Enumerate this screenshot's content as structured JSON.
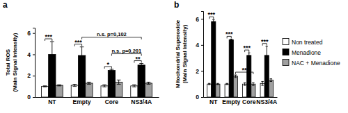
{
  "chart_data": [
    {
      "type": "bar",
      "title": "a",
      "y_label": "Total ROS\n(Main Signal Intensity)",
      "categories": [
        "NT",
        "Empty",
        "Core",
        "NS3/4A"
      ],
      "series": [
        {
          "name": "Non treated",
          "color": "#ffffff",
          "values": [
            1.0,
            1.1,
            1.05,
            1.05
          ],
          "errors": [
            0.05,
            0.1,
            0.1,
            0.1
          ]
        },
        {
          "name": "Menadione",
          "color": "#000000",
          "values": [
            4.0,
            3.9,
            2.5,
            3.0
          ],
          "errors": [
            1.2,
            0.8,
            0.1,
            0.15
          ]
        },
        {
          "name": "NAC + Menadione",
          "color": "#a0a0a0",
          "values": [
            1.1,
            1.3,
            1.4,
            1.3
          ],
          "errors": [
            0.05,
            0.1,
            0.2,
            0.1
          ]
        }
      ],
      "ylim": [
        0,
        6.5
      ],
      "yticks": [
        0,
        2,
        4,
        6
      ],
      "annotations": [
        {
          "text": "***",
          "between": [
            [
              "NT",
              "Non treated"
            ],
            [
              "NT",
              "Menadione"
            ]
          ]
        },
        {
          "text": "***",
          "between": [
            [
              "Empty",
              "Non treated"
            ],
            [
              "Empty",
              "Menadione"
            ]
          ]
        },
        {
          "text": "*",
          "between": [
            [
              "Core",
              "Non treated"
            ],
            [
              "Core",
              "Menadione"
            ]
          ]
        },
        {
          "text": "**",
          "between": [
            [
              "NS3/4A",
              "Non treated"
            ],
            [
              "NS3/4A",
              "Menadione"
            ]
          ]
        },
        {
          "text": "n.s. p=0,201",
          "between": [
            [
              "Core",
              "Menadione"
            ],
            [
              "NS3/4A",
              "Menadione"
            ]
          ]
        },
        {
          "text": "n.s. p=0,102",
          "between": [
            [
              "Empty",
              "Menadione"
            ],
            [
              "NS3/4A",
              "Menadione"
            ]
          ]
        }
      ]
    },
    {
      "type": "bar",
      "title": "b",
      "y_label": "Mitochondrial Superoxide\n(Main Signal Intensity)",
      "categories": [
        "NT",
        "Empty",
        "Core",
        "NS3/4A"
      ],
      "series": [
        {
          "name": "Non treated",
          "color": "#ffffff",
          "values": [
            1.0,
            1.0,
            1.0,
            1.05
          ],
          "errors": [
            0.05,
            0.05,
            0.1,
            0.15
          ]
        },
        {
          "name": "Menadione",
          "color": "#000000",
          "values": [
            5.8,
            4.4,
            3.2,
            3.2
          ],
          "errors": [
            0.15,
            0.05,
            0.2,
            0.7
          ]
        },
        {
          "name": "NAC + Menadione",
          "color": "#a0a0a0",
          "values": [
            1.0,
            1.6,
            1.0,
            1.3
          ],
          "errors": [
            0.05,
            0.1,
            0.1,
            0.1
          ]
        }
      ],
      "ylim": [
        0,
        6.6
      ],
      "yticks": [
        0,
        2,
        4,
        6
      ],
      "legend": "right",
      "annotations": [
        {
          "text": "**",
          "between": [
            [
              "Empty",
              "NAC + Menadione"
            ],
            [
              "Core",
              "NAC + Menadione"
            ]
          ]
        },
        {
          "text": "***",
          "between": [
            [
              "NT",
              "Non treated"
            ],
            [
              "NT",
              "Menadione"
            ]
          ]
        },
        {
          "text": "***",
          "between": [
            [
              "Empty",
              "Non treated"
            ],
            [
              "Empty",
              "Menadione"
            ]
          ]
        },
        {
          "text": "***",
          "between": [
            [
              "Core",
              "Non treated"
            ],
            [
              "Core",
              "Menadione"
            ]
          ]
        },
        {
          "text": "***",
          "between": [
            [
              "NS3/4A",
              "Non treated"
            ],
            [
              "NS3/4A",
              "Menadione"
            ]
          ]
        }
      ]
    }
  ]
}
